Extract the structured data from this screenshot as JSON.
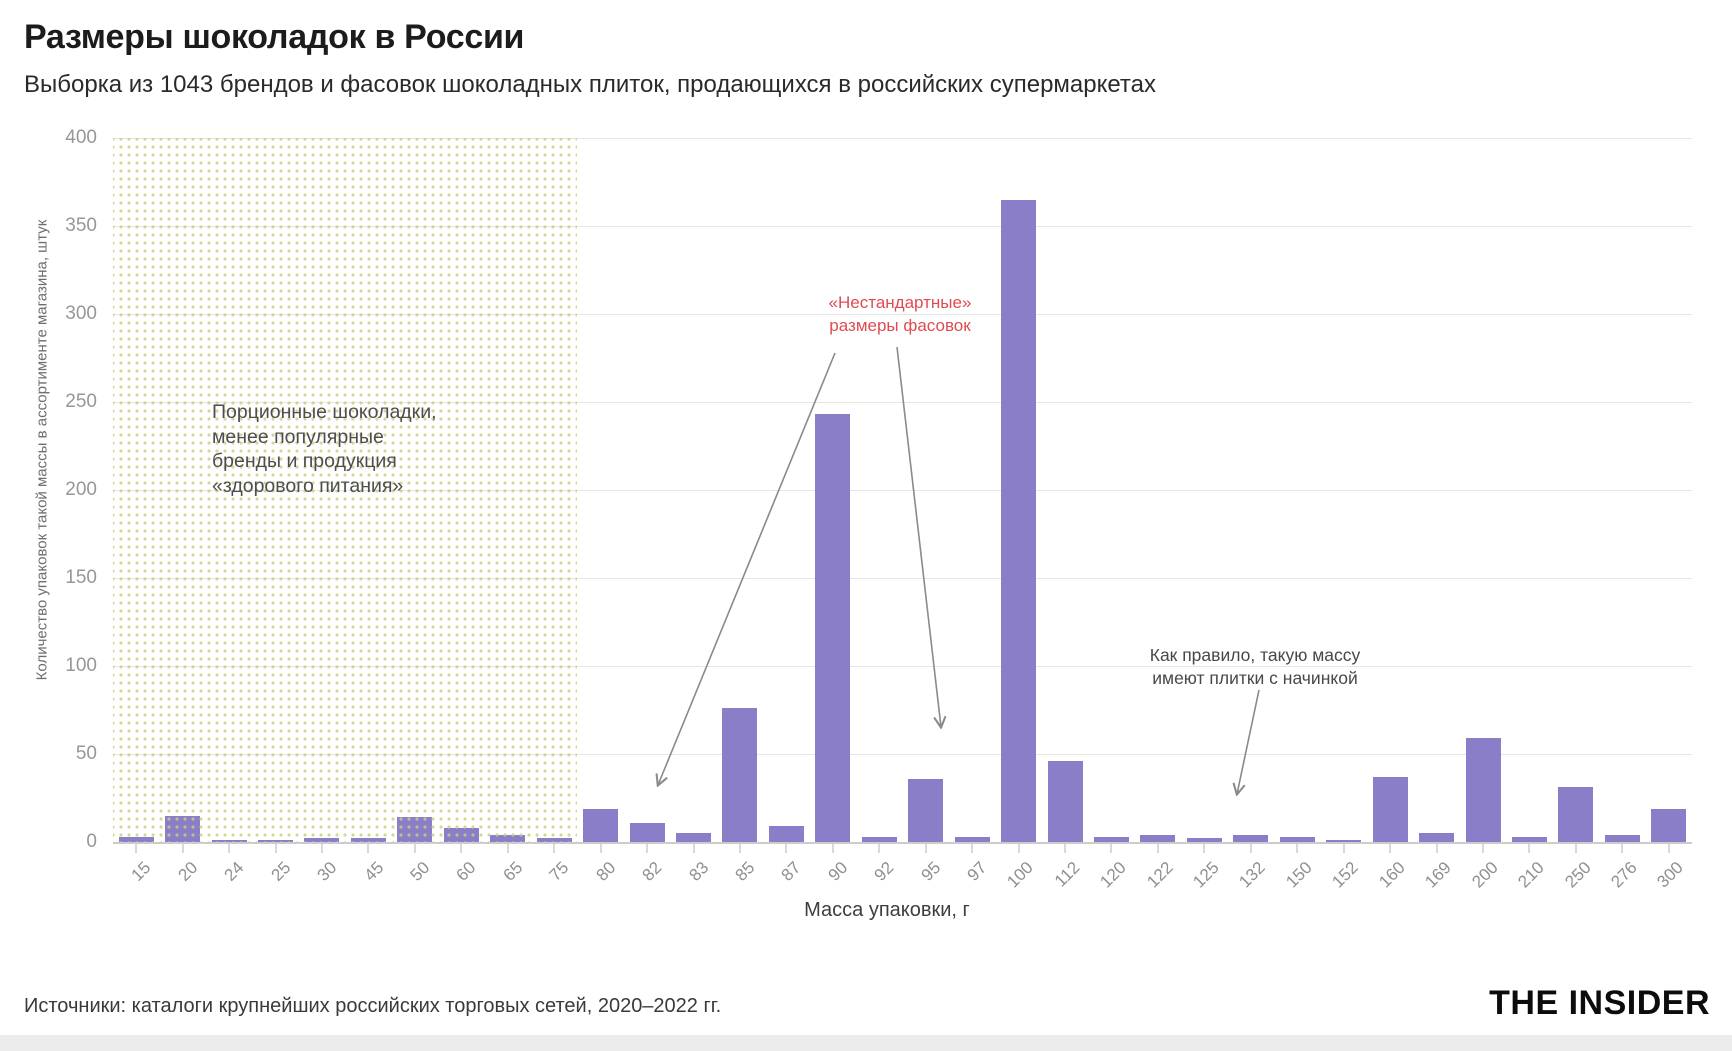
{
  "header": {
    "title": "Размеры шоколадок в России",
    "subtitle": "Выборка из 1043 брендов и фасовок шоколадных плиток, продающихся в российских супермаркетах"
  },
  "chart_data": {
    "type": "bar",
    "title": "Размеры шоколадок в России",
    "categories": [
      "15",
      "20",
      "24",
      "25",
      "30",
      "45",
      "50",
      "60",
      "65",
      "75",
      "80",
      "82",
      "83",
      "85",
      "87",
      "90",
      "92",
      "95",
      "97",
      "100",
      "112",
      "120",
      "122",
      "125",
      "132",
      "150",
      "152",
      "160",
      "169",
      "200",
      "210",
      "250",
      "276",
      "300"
    ],
    "values": [
      3,
      15,
      1,
      1,
      2,
      2,
      14,
      8,
      4,
      2,
      19,
      11,
      5,
      76,
      9,
      243,
      3,
      36,
      3,
      365,
      46,
      3,
      4,
      2,
      4,
      3,
      1,
      37,
      5,
      59,
      3,
      31,
      4,
      19
    ],
    "xlabel": "Масса упаковки, г",
    "ylabel": "Количество упаковок такой массы в ассортименте магазина, штук",
    "ylim": [
      0,
      400
    ],
    "yticks": [
      0,
      50,
      100,
      150,
      200,
      250,
      300,
      350,
      400
    ],
    "grid": true,
    "legend_position": "none",
    "bar_color": "#8b7ec8",
    "dot_pattern_color": "#d0cb7a",
    "highlight_region": {
      "from_category": "15",
      "to_category": "75",
      "style": "yellow-dots"
    },
    "annotations": {
      "region_note": {
        "lines": [
          "Порционные шоколадки,",
          "менее популярные",
          "бренды и продукция",
          "«здорового питания»"
        ],
        "color": "#4e4e4e"
      },
      "nonstandard_note": {
        "lines": [
          "«Нестандартные»",
          "размеры фасовок"
        ],
        "color": "#e04b52",
        "targets": [
          "82",
          "95"
        ]
      },
      "filled_note": {
        "lines": [
          "Как правило, такую массу",
          "имеют плитки с начинкой"
        ],
        "color": "#484848",
        "targets": [
          "132"
        ]
      }
    }
  },
  "footer": {
    "sources": "Источники: каталоги крупнейших российских торговых сетей, 2020–2022 гг.",
    "brand": "THE INSIDER"
  }
}
